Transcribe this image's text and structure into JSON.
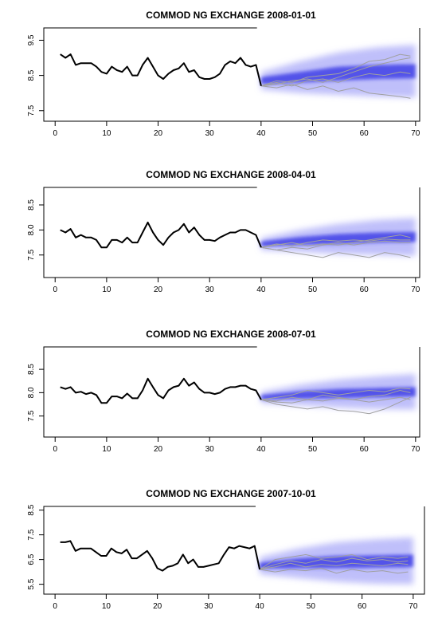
{
  "chart_data": [
    {
      "type": "line",
      "title": "COMMOD NG EXCHANGE 2008-01-01",
      "xlabel": "",
      "ylabel": "",
      "xlim": [
        0,
        70
      ],
      "ylim": [
        7.5,
        9.5
      ],
      "xticks": [
        0,
        10,
        20,
        30,
        40,
        50,
        60,
        70
      ],
      "yticks": [
        7.5,
        8.5,
        9.5
      ],
      "grid": false,
      "history": {
        "x": [
          1,
          2,
          3,
          4,
          5,
          6,
          7,
          8,
          9,
          10,
          11,
          12,
          13,
          14,
          15,
          16,
          17,
          18,
          19,
          20,
          21,
          22,
          23,
          24,
          25,
          26,
          27,
          28,
          29,
          30,
          31,
          32,
          33,
          34,
          35,
          36,
          37,
          38,
          39,
          40
        ],
        "y": [
          9.1,
          9.0,
          9.1,
          8.8,
          8.85,
          8.85,
          8.85,
          8.75,
          8.6,
          8.55,
          8.75,
          8.65,
          8.6,
          8.75,
          8.5,
          8.5,
          8.8,
          9.0,
          8.75,
          8.5,
          8.4,
          8.55,
          8.65,
          8.7,
          8.85,
          8.6,
          8.65,
          8.45,
          8.4,
          8.4,
          8.45,
          8.55,
          8.8,
          8.9,
          8.85,
          9.0,
          8.8,
          8.75,
          8.8,
          8.2
        ]
      },
      "forecast": {
        "x_start": 40,
        "x_end": 70,
        "band_center": [
          8.35,
          8.45,
          8.55,
          8.6,
          8.62
        ],
        "band_outer_halfwidth": [
          0.25,
          0.45,
          0.6,
          0.7,
          0.75
        ],
        "band_inner_halfwidth": [
          0.1,
          0.15,
          0.2,
          0.2,
          0.2
        ]
      },
      "scenarios": [
        {
          "x": [
            40,
            43,
            46,
            49,
            52,
            55,
            58,
            61,
            64,
            67,
            69
          ],
          "y": [
            8.2,
            8.35,
            8.3,
            8.45,
            8.5,
            8.55,
            8.7,
            8.9,
            8.95,
            9.1,
            9.05
          ]
        },
        {
          "x": [
            40,
            43,
            46,
            49,
            52,
            55,
            58,
            61,
            64,
            67,
            69
          ],
          "y": [
            8.2,
            8.25,
            8.35,
            8.4,
            8.3,
            8.45,
            8.6,
            8.75,
            8.85,
            8.95,
            9.0
          ]
        },
        {
          "x": [
            40,
            43,
            46,
            49,
            52,
            55,
            58,
            61,
            64,
            67,
            69
          ],
          "y": [
            8.2,
            8.3,
            8.2,
            8.35,
            8.4,
            8.3,
            8.45,
            8.55,
            8.5,
            8.6,
            8.55
          ]
        },
        {
          "x": [
            40,
            43,
            46,
            49,
            52,
            55,
            58,
            61,
            64,
            67,
            69
          ],
          "y": [
            8.2,
            8.15,
            8.25,
            8.1,
            8.2,
            8.05,
            8.15,
            8.0,
            7.95,
            7.9,
            7.85
          ]
        }
      ]
    },
    {
      "type": "line",
      "title": "COMMOD NG EXCHANGE 2008-04-01",
      "xlabel": "",
      "ylabel": "",
      "xlim": [
        0,
        70
      ],
      "ylim": [
        7.5,
        8.5
      ],
      "xticks": [
        0,
        10,
        20,
        30,
        40,
        50,
        60,
        70
      ],
      "yticks": [
        7.5,
        8.0,
        8.5
      ],
      "grid": false,
      "history": {
        "x": [
          1,
          2,
          3,
          4,
          5,
          6,
          7,
          8,
          9,
          10,
          11,
          12,
          13,
          14,
          15,
          16,
          17,
          18,
          19,
          20,
          21,
          22,
          23,
          24,
          25,
          26,
          27,
          28,
          29,
          30,
          31,
          32,
          33,
          34,
          35,
          36,
          37,
          38,
          39,
          40
        ],
        "y": [
          8.0,
          7.95,
          8.02,
          7.85,
          7.9,
          7.85,
          7.85,
          7.8,
          7.65,
          7.65,
          7.8,
          7.8,
          7.75,
          7.85,
          7.75,
          7.75,
          7.95,
          8.15,
          7.95,
          7.8,
          7.7,
          7.85,
          7.95,
          8.0,
          8.12,
          7.95,
          8.05,
          7.9,
          7.8,
          7.8,
          7.78,
          7.85,
          7.9,
          7.95,
          7.95,
          8.0,
          8.0,
          7.95,
          7.9,
          7.65
        ]
      },
      "forecast": {
        "x_start": 40,
        "x_end": 70,
        "band_center": [
          7.72,
          7.78,
          7.82,
          7.85,
          7.86
        ],
        "band_outer_halfwidth": [
          0.12,
          0.22,
          0.3,
          0.35,
          0.38
        ],
        "band_inner_halfwidth": [
          0.05,
          0.08,
          0.1,
          0.1,
          0.1
        ]
      },
      "scenarios": [
        {
          "x": [
            40,
            43,
            46,
            49,
            52,
            55,
            58,
            61,
            64,
            67,
            69
          ],
          "y": [
            7.65,
            7.7,
            7.75,
            7.68,
            7.72,
            7.7,
            7.75,
            7.8,
            7.85,
            7.9,
            7.85
          ]
        },
        {
          "x": [
            40,
            43,
            46,
            49,
            52,
            55,
            58,
            61,
            64,
            67,
            69
          ],
          "y": [
            7.65,
            7.72,
            7.68,
            7.75,
            7.8,
            7.78,
            7.8,
            7.78,
            7.82,
            7.8,
            7.8
          ]
        },
        {
          "x": [
            40,
            43,
            46,
            49,
            52,
            55,
            58,
            61,
            64,
            67,
            69
          ],
          "y": [
            7.65,
            7.6,
            7.65,
            7.62,
            7.7,
            7.75,
            7.7,
            7.75,
            7.78,
            7.75,
            7.75
          ]
        },
        {
          "x": [
            40,
            43,
            46,
            49,
            52,
            55,
            58,
            61,
            64,
            67,
            69
          ],
          "y": [
            7.65,
            7.6,
            7.55,
            7.5,
            7.45,
            7.55,
            7.5,
            7.45,
            7.55,
            7.5,
            7.45
          ]
        }
      ]
    },
    {
      "type": "line",
      "title": "COMMOD NG EXCHANGE 2008-07-01",
      "xlabel": "",
      "ylabel": "",
      "xlim": [
        0,
        70
      ],
      "ylim": [
        7.5,
        8.5
      ],
      "xticks": [
        0,
        10,
        20,
        30,
        40,
        50,
        60,
        70
      ],
      "yticks": [
        7.5,
        8.0,
        8.5
      ],
      "grid": false,
      "history": {
        "x": [
          1,
          2,
          3,
          4,
          5,
          6,
          7,
          8,
          9,
          10,
          11,
          12,
          13,
          14,
          15,
          16,
          17,
          18,
          19,
          20,
          21,
          22,
          23,
          24,
          25,
          26,
          27,
          28,
          29,
          30,
          31,
          32,
          33,
          34,
          35,
          36,
          37,
          38,
          39,
          40
        ],
        "y": [
          8.12,
          8.08,
          8.12,
          8.0,
          8.02,
          7.97,
          8.0,
          7.95,
          7.78,
          7.78,
          7.92,
          7.92,
          7.88,
          7.98,
          7.88,
          7.88,
          8.05,
          8.3,
          8.12,
          7.95,
          7.88,
          8.05,
          8.12,
          8.15,
          8.3,
          8.15,
          8.22,
          8.08,
          8.0,
          8.0,
          7.97,
          8.0,
          8.08,
          8.12,
          8.12,
          8.15,
          8.15,
          8.08,
          8.05,
          7.85
        ]
      },
      "forecast": {
        "x_start": 40,
        "x_end": 70,
        "band_center": [
          7.9,
          7.95,
          7.98,
          8.0,
          8.02
        ],
        "band_outer_halfwidth": [
          0.12,
          0.22,
          0.3,
          0.35,
          0.38
        ],
        "band_inner_halfwidth": [
          0.05,
          0.08,
          0.1,
          0.1,
          0.1
        ]
      },
      "scenarios": [
        {
          "x": [
            40,
            43,
            46,
            49,
            52,
            55,
            58,
            61,
            64,
            67,
            69
          ],
          "y": [
            7.85,
            7.9,
            7.95,
            8.05,
            8.0,
            7.95,
            8.0,
            8.05,
            8.02,
            8.1,
            8.08
          ]
        },
        {
          "x": [
            40,
            43,
            46,
            49,
            52,
            55,
            58,
            61,
            64,
            67,
            69
          ],
          "y": [
            7.85,
            7.82,
            7.9,
            7.85,
            7.95,
            7.9,
            7.85,
            7.92,
            7.95,
            8.05,
            8.0
          ]
        },
        {
          "x": [
            40,
            43,
            46,
            49,
            52,
            55,
            58,
            61,
            64,
            67,
            69
          ],
          "y": [
            7.85,
            7.8,
            7.78,
            7.85,
            7.82,
            7.88,
            7.85,
            7.8,
            7.85,
            7.9,
            7.85
          ]
        },
        {
          "x": [
            40,
            43,
            46,
            49,
            52,
            55,
            58,
            61,
            64,
            67,
            69
          ],
          "y": [
            7.85,
            7.75,
            7.7,
            7.65,
            7.7,
            7.62,
            7.6,
            7.55,
            7.65,
            7.8,
            7.9
          ]
        }
      ]
    },
    {
      "type": "line",
      "title": "COMMOD NG EXCHANGE 2007-10-01",
      "xlabel": "",
      "ylabel": "",
      "xlim": [
        0,
        70
      ],
      "ylim": [
        5.5,
        8.5
      ],
      "xticks": [
        0,
        10,
        20,
        30,
        40,
        50,
        60,
        70
      ],
      "yticks": [
        5.5,
        6.5,
        7.5,
        8.5
      ],
      "grid": false,
      "history": {
        "x": [
          1,
          2,
          3,
          4,
          5,
          6,
          7,
          8,
          9,
          10,
          11,
          12,
          13,
          14,
          15,
          16,
          17,
          18,
          19,
          20,
          21,
          22,
          23,
          24,
          25,
          26,
          27,
          28,
          29,
          30,
          31,
          32,
          33,
          34,
          35,
          36,
          37,
          38,
          39,
          40
        ],
        "y": [
          7.2,
          7.2,
          7.25,
          6.85,
          6.95,
          6.95,
          6.95,
          6.8,
          6.65,
          6.65,
          6.95,
          6.8,
          6.75,
          6.9,
          6.55,
          6.55,
          6.7,
          6.85,
          6.55,
          6.15,
          6.05,
          6.2,
          6.25,
          6.35,
          6.7,
          6.35,
          6.5,
          6.2,
          6.2,
          6.25,
          6.3,
          6.35,
          6.7,
          7.0,
          6.95,
          7.05,
          7.0,
          6.95,
          7.05,
          6.1
        ]
      },
      "forecast": {
        "x_start": 40,
        "x_end": 70,
        "band_center": [
          6.25,
          6.35,
          6.4,
          6.42,
          6.45
        ],
        "band_outer_halfwidth": [
          0.35,
          0.6,
          0.8,
          0.9,
          0.95
        ],
        "band_inner_halfwidth": [
          0.12,
          0.2,
          0.25,
          0.25,
          0.25
        ]
      },
      "scenarios": [
        {
          "x": [
            40,
            43,
            46,
            49,
            52,
            55,
            58,
            61,
            64,
            67,
            69
          ],
          "y": [
            6.1,
            6.5,
            6.6,
            6.7,
            6.55,
            6.6,
            6.7,
            6.5,
            6.6,
            6.55,
            6.6
          ]
        },
        {
          "x": [
            40,
            43,
            46,
            49,
            52,
            55,
            58,
            61,
            64,
            67,
            69
          ],
          "y": [
            6.1,
            6.3,
            6.45,
            6.35,
            6.5,
            6.4,
            6.55,
            6.45,
            6.5,
            6.4,
            6.45
          ]
        },
        {
          "x": [
            40,
            43,
            46,
            49,
            52,
            55,
            58,
            61,
            64,
            67,
            69
          ],
          "y": [
            6.1,
            6.2,
            6.35,
            6.2,
            6.3,
            6.25,
            6.35,
            6.3,
            6.25,
            6.35,
            6.3
          ]
        },
        {
          "x": [
            40,
            43,
            46,
            49,
            52,
            55,
            58,
            61,
            64,
            67,
            69
          ],
          "y": [
            6.1,
            6.0,
            6.1,
            6.05,
            6.15,
            5.95,
            6.1,
            6.0,
            6.05,
            5.95,
            6.0
          ]
        }
      ]
    }
  ],
  "colors": {
    "history_line": "#000000",
    "scenario_line": "#a0a0a0",
    "band_inner": "#3f3fe6",
    "band_outer": "#8a8af5",
    "axis": "#000000"
  }
}
